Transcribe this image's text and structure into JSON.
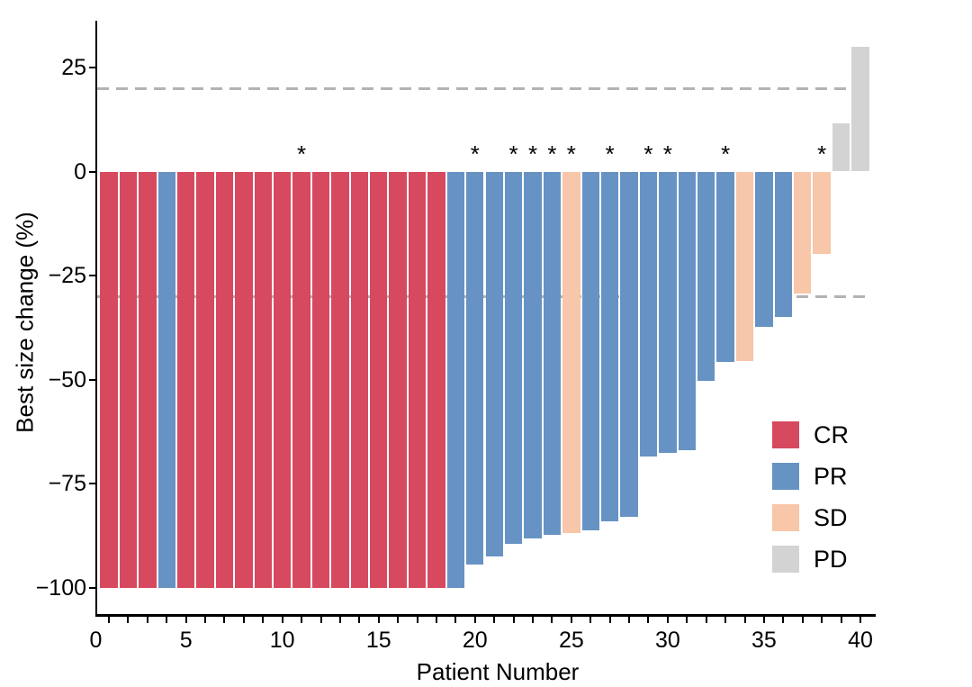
{
  "chart_data": {
    "type": "bar",
    "title": "",
    "xlabel": "Patient Number",
    "ylabel": "Best size change (%)",
    "annotation_symbol": "*",
    "grid": false,
    "xlim": [
      0,
      41
    ],
    "ylim": [
      -106,
      36
    ],
    "x_ticks_labeled": [
      0,
      5,
      10,
      15,
      20,
      25,
      30,
      35,
      40
    ],
    "x_minor_ticks": "every patient 1-40",
    "y_ticks": [
      25,
      0,
      -25,
      -50,
      -75,
      -100
    ],
    "y_tick_labels": [
      "25",
      "0",
      "−25",
      "−50",
      "−75",
      "−100"
    ],
    "reference_lines": [
      20,
      -30
    ],
    "reference_line_color": "#b3b3b3",
    "colors": {
      "CR": "#d6495f",
      "PR": "#6793c4",
      "SD": "#f8c6a8",
      "PD": "#d3d3d3"
    },
    "legend": [
      {
        "label": "CR",
        "color": "#d6495f"
      },
      {
        "label": "PR",
        "color": "#6793c4"
      },
      {
        "label": "SD",
        "color": "#f8c6a8"
      },
      {
        "label": "PD",
        "color": "#d3d3d3"
      }
    ],
    "marked_patients": [
      11,
      20,
      22,
      23,
      24,
      25,
      27,
      29,
      30,
      33,
      38
    ],
    "patients": [
      {
        "n": 1,
        "change": -100,
        "response": "CR",
        "marked": false
      },
      {
        "n": 2,
        "change": -100,
        "response": "CR",
        "marked": false
      },
      {
        "n": 3,
        "change": -100,
        "response": "CR",
        "marked": false
      },
      {
        "n": 4,
        "change": -100,
        "response": "PR",
        "marked": false
      },
      {
        "n": 5,
        "change": -100,
        "response": "CR",
        "marked": false
      },
      {
        "n": 6,
        "change": -100,
        "response": "CR",
        "marked": false
      },
      {
        "n": 7,
        "change": -100,
        "response": "CR",
        "marked": false
      },
      {
        "n": 8,
        "change": -100,
        "response": "CR",
        "marked": false
      },
      {
        "n": 9,
        "change": -100,
        "response": "CR",
        "marked": false
      },
      {
        "n": 10,
        "change": -100,
        "response": "CR",
        "marked": false
      },
      {
        "n": 11,
        "change": -100,
        "response": "CR",
        "marked": true
      },
      {
        "n": 12,
        "change": -100,
        "response": "CR",
        "marked": false
      },
      {
        "n": 13,
        "change": -100,
        "response": "CR",
        "marked": false
      },
      {
        "n": 14,
        "change": -100,
        "response": "CR",
        "marked": false
      },
      {
        "n": 15,
        "change": -100,
        "response": "CR",
        "marked": false
      },
      {
        "n": 16,
        "change": -100,
        "response": "CR",
        "marked": false
      },
      {
        "n": 17,
        "change": -100,
        "response": "CR",
        "marked": false
      },
      {
        "n": 18,
        "change": -100,
        "response": "CR",
        "marked": false
      },
      {
        "n": 19,
        "change": -100,
        "response": "PR",
        "marked": false
      },
      {
        "n": 20,
        "change": -94.5,
        "response": "PR",
        "marked": true
      },
      {
        "n": 21,
        "change": -92.5,
        "response": "PR",
        "marked": false
      },
      {
        "n": 22,
        "change": -89.5,
        "response": "PR",
        "marked": true
      },
      {
        "n": 23,
        "change": -88.2,
        "response": "PR",
        "marked": true
      },
      {
        "n": 24,
        "change": -87.3,
        "response": "PR",
        "marked": true
      },
      {
        "n": 25,
        "change": -86.9,
        "response": "SD",
        "marked": true
      },
      {
        "n": 26,
        "change": -86.3,
        "response": "PR",
        "marked": false
      },
      {
        "n": 27,
        "change": -84.1,
        "response": "PR",
        "marked": true
      },
      {
        "n": 28,
        "change": -83,
        "response": "PR",
        "marked": false
      },
      {
        "n": 29,
        "change": -68.4,
        "response": "PR",
        "marked": true
      },
      {
        "n": 30,
        "change": -67.7,
        "response": "PR",
        "marked": true
      },
      {
        "n": 31,
        "change": -67,
        "response": "PR",
        "marked": false
      },
      {
        "n": 32,
        "change": -50.4,
        "response": "PR",
        "marked": false
      },
      {
        "n": 33,
        "change": -45.7,
        "response": "PR",
        "marked": true
      },
      {
        "n": 34,
        "change": -45.5,
        "response": "SD",
        "marked": false
      },
      {
        "n": 35,
        "change": -37.3,
        "response": "PR",
        "marked": false
      },
      {
        "n": 36,
        "change": -34.9,
        "response": "PR",
        "marked": false
      },
      {
        "n": 37,
        "change": -29.3,
        "response": "SD",
        "marked": false
      },
      {
        "n": 38,
        "change": -19.7,
        "response": "SD",
        "marked": true
      },
      {
        "n": 39,
        "change": 11.6,
        "response": "PD",
        "marked": false
      },
      {
        "n": 40,
        "change": 30,
        "response": "PD",
        "marked": false
      }
    ]
  }
}
